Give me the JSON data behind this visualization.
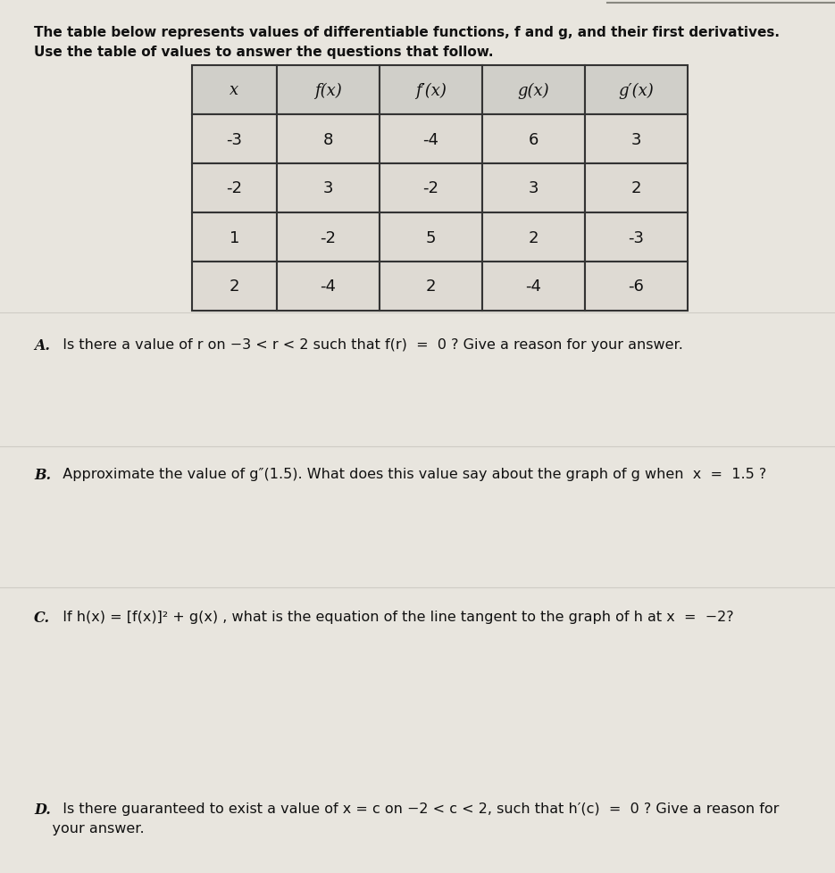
{
  "intro_text_line1": "The table below represents values of differentiable functions, f and g, and their first derivatives.",
  "intro_text_line2": "Use the table of values to answer the questions that follow.",
  "table_headers": [
    "x",
    "f(x)",
    "f′(x)",
    "g(x)",
    "g′(x)"
  ],
  "table_rows": [
    [
      "-3",
      "8",
      "-4",
      "6",
      "3"
    ],
    [
      "-2",
      "3",
      "-2",
      "3",
      "2"
    ],
    [
      "1",
      "-2",
      "5",
      "2",
      "-3"
    ],
    [
      "2",
      "-4",
      "2",
      "-4",
      "-6"
    ]
  ],
  "question_A_bold": "A.",
  "question_A_rest": "  Is there a value of r on −3 < r < 2 such that f(r)  =  0 ? Give a reason for your answer.",
  "question_B_bold": "B.",
  "question_B_rest": "  Approximate the value of g″(1.5). What does this value say about the graph of g when  x  =  1.5 ?",
  "question_C_bold": "C.",
  "question_C_rest": "  If h(x) = [f(x)]² + g(x) , what is the equation of the line tangent to the graph of h at x  =  −2?",
  "question_D_bold": "D.",
  "question_D_rest": "  Is there guaranteed to exist a value of x = c on −2 < c < 2, such that h′(c)  =  0 ? Give a reason for",
  "question_D_line2": "    your answer.",
  "bg_color": "#c8c5bc",
  "paper_color": "#e8e5de",
  "table_header_bg": "#d0cfc9",
  "table_row_bg_light": "#dedad3",
  "table_border_color": "#333333",
  "text_color": "#111111",
  "top_line_color": "#888880",
  "title_fontsize": 11.0,
  "question_fontsize": 11.5,
  "table_fontsize": 13.0
}
